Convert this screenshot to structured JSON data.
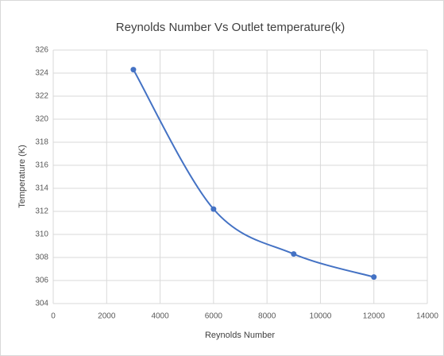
{
  "chart_data": {
    "type": "scatter",
    "title": "Reynolds Number Vs Outlet temperature(k)",
    "x_label": "Reynolds Number",
    "y_label": "Temperature (K)",
    "series": [
      {
        "color": "#4472c4",
        "x": [
          3000,
          6000,
          9000,
          12000
        ],
        "values": [
          324.3,
          312.2,
          308.3,
          306.3
        ]
      }
    ],
    "smooth": true,
    "grid": true,
    "xlim": [
      0,
      14000
    ],
    "xticks": [
      0,
      2000,
      4000,
      6000,
      8000,
      10000,
      12000,
      14000
    ],
    "ylim": [
      304,
      326
    ],
    "yticks": [
      304,
      306,
      308,
      310,
      312,
      314,
      316,
      318,
      320,
      322,
      324,
      326
    ]
  }
}
